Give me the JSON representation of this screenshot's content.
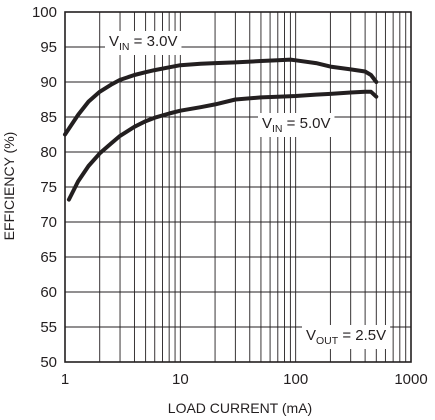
{
  "chart_data": {
    "type": "line",
    "x_scale": "log",
    "xlim": [
      1,
      1000
    ],
    "ylim": [
      50,
      100
    ],
    "grid": true,
    "xlabel": "LOAD CURRENT (mA)",
    "ylabel": "EFFICIENCY (%)",
    "x_ticks": [
      {
        "value": 1,
        "label": "1"
      },
      {
        "value": 10,
        "label": "10"
      },
      {
        "value": 100,
        "label": "100"
      },
      {
        "value": 1000,
        "label": "1000"
      }
    ],
    "y_ticks": [
      {
        "value": 50,
        "label": "50"
      },
      {
        "value": 55,
        "label": "55"
      },
      {
        "value": 60,
        "label": "60"
      },
      {
        "value": 65,
        "label": "65"
      },
      {
        "value": 70,
        "label": "70"
      },
      {
        "value": 75,
        "label": "75"
      },
      {
        "value": 80,
        "label": "80"
      },
      {
        "value": 85,
        "label": "85"
      },
      {
        "value": 90,
        "label": "90"
      },
      {
        "value": 95,
        "label": "95"
      },
      {
        "value": 100,
        "label": "100"
      }
    ],
    "series": [
      {
        "name_main": "V",
        "name_sub": "IN",
        "name_rest": " = 3.0V",
        "x": [
          1,
          1.3,
          1.6,
          2,
          2.5,
          3,
          4,
          5,
          6,
          8,
          10,
          15,
          20,
          30,
          50,
          70,
          90,
          100,
          150,
          200,
          300,
          400,
          450,
          500
        ],
        "y": [
          82.5,
          85.3,
          87.2,
          88.6,
          89.6,
          90.3,
          91.0,
          91.4,
          91.7,
          92.1,
          92.4,
          92.6,
          92.7,
          92.8,
          93.0,
          93.1,
          93.2,
          93.1,
          92.7,
          92.2,
          91.8,
          91.5,
          91.0,
          90.0
        ]
      },
      {
        "name_main": "V",
        "name_sub": "IN",
        "name_rest": " = 5.0V",
        "x": [
          1.08,
          1.3,
          1.6,
          2,
          2.5,
          3,
          4,
          5,
          6,
          8,
          10,
          15,
          20,
          30,
          50,
          70,
          100,
          150,
          200,
          300,
          400,
          450,
          500
        ],
        "y": [
          73.2,
          75.8,
          78.0,
          79.8,
          81.2,
          82.3,
          83.6,
          84.4,
          84.9,
          85.5,
          85.9,
          86.4,
          86.8,
          87.5,
          87.8,
          87.9,
          88.0,
          88.2,
          88.3,
          88.5,
          88.6,
          88.6,
          87.9
        ]
      }
    ],
    "annotations": [
      {
        "main": "V",
        "sub": "OUT",
        "rest": " = 2.5V"
      }
    ]
  }
}
